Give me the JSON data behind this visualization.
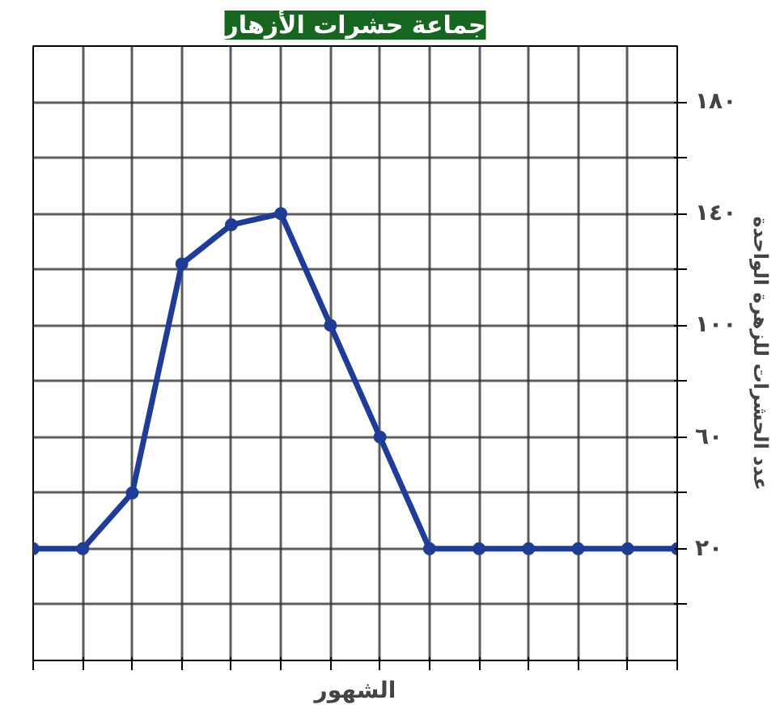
{
  "chart_data": {
    "type": "line",
    "title": "جماعة حشرات الأزهار",
    "xlabel": "الشهور",
    "ylabel": "عدد الحشرات للزهرة الواحدة",
    "categories": [
      null,
      null,
      null,
      null,
      null,
      null,
      null,
      null,
      null,
      null,
      null,
      null,
      null,
      null
    ],
    "series": [
      {
        "color": "#1f3c96",
        "values": [
          20,
          20,
          40,
          122,
          136,
          140,
          100,
          60,
          20,
          20,
          20,
          20,
          20,
          20
        ]
      }
    ],
    "ylim": [
      -20,
      200
    ],
    "yticks": [
      {
        "value": 0,
        "label": null
      },
      {
        "value": 20,
        "label": "٢٠"
      },
      {
        "value": 40,
        "label": null
      },
      {
        "value": 60,
        "label": "٦٠"
      },
      {
        "value": 80,
        "label": null
      },
      {
        "value": 100,
        "label": "١٠٠"
      },
      {
        "value": 120,
        "label": null
      },
      {
        "value": 140,
        "label": "١٤٠"
      },
      {
        "value": 160,
        "label": null
      },
      {
        "value": 180,
        "label": "١٨٠"
      }
    ],
    "grid": true,
    "marker": "circle",
    "line_style": "solid"
  }
}
